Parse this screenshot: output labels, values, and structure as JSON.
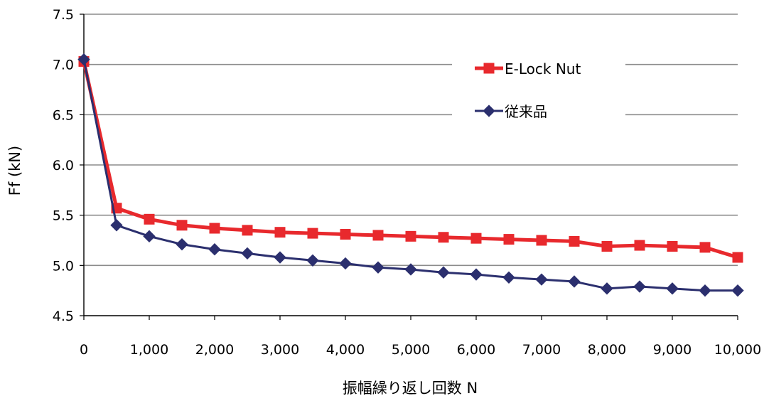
{
  "colors": {
    "series_a": "#e8292d",
    "series_b": "#2b2f6e",
    "grid": "#8c8c8c",
    "axis": "#000000"
  },
  "chart_data": {
    "type": "line",
    "title": "",
    "xlabel": "振幅繰り返し回数 N",
    "ylabel": "Ff (kN)",
    "xlim": [
      0,
      10000
    ],
    "ylim": [
      4.5,
      7.5
    ],
    "xticks": [
      0,
      1000,
      2000,
      3000,
      4000,
      5000,
      6000,
      7000,
      8000,
      9000,
      10000
    ],
    "xtick_labels": [
      "0",
      "1,000",
      "2,000",
      "3,000",
      "4,000",
      "5,000",
      "6,000",
      "7,000",
      "8,000",
      "9,000",
      "10,000"
    ],
    "yticks": [
      4.5,
      5.0,
      5.5,
      6.0,
      6.5,
      7.0,
      7.5
    ],
    "ytick_labels": [
      "4.5",
      "5.0",
      "5.5",
      "6.0",
      "6.5",
      "7.0",
      "7.5"
    ],
    "grid": "horizontal",
    "legend_position": "top-right",
    "x": [
      0,
      500,
      1000,
      1500,
      2000,
      2500,
      3000,
      3500,
      4000,
      4500,
      5000,
      5500,
      6000,
      6500,
      7000,
      7500,
      8000,
      8500,
      9000,
      9500,
      10000
    ],
    "series": [
      {
        "name": "E-Lock Nut",
        "marker": "square",
        "values": [
          7.03,
          5.57,
          5.46,
          5.4,
          5.37,
          5.35,
          5.33,
          5.32,
          5.31,
          5.3,
          5.29,
          5.28,
          5.27,
          5.26,
          5.25,
          5.24,
          5.19,
          5.2,
          5.19,
          5.18,
          5.08
        ]
      },
      {
        "name": "従来品",
        "marker": "diamond",
        "values": [
          7.05,
          5.4,
          5.29,
          5.21,
          5.16,
          5.12,
          5.08,
          5.05,
          5.02,
          4.98,
          4.96,
          4.93,
          4.91,
          4.88,
          4.86,
          4.84,
          4.77,
          4.79,
          4.77,
          4.75,
          4.75
        ]
      }
    ]
  }
}
